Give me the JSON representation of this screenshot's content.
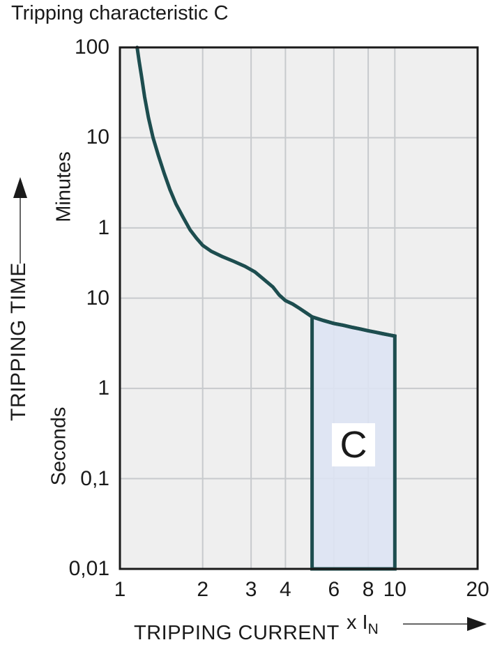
{
  "chart_data": {
    "type": "line",
    "title": "Tripping characteristic C",
    "x_axis": {
      "label": "TRIPPING CURRENT",
      "unit_label": "x I",
      "unit_sub": "N",
      "scale": "log",
      "range": [
        1,
        20
      ],
      "tick_values": [
        1,
        2,
        3,
        4,
        6,
        8,
        10,
        20
      ],
      "tick_labels": [
        "1",
        "2",
        "3",
        "4",
        "6",
        "8",
        "10",
        "20"
      ]
    },
    "y_axis": {
      "label": "TRIPPING TIME",
      "scale": "log",
      "range_seconds": [
        0.01,
        6000
      ],
      "upper_unit": "Minutes",
      "lower_unit": "Seconds",
      "ticks": [
        {
          "label": "100",
          "seconds": 6000
        },
        {
          "label": "10",
          "seconds": 600
        },
        {
          "label": "1",
          "seconds": 60
        },
        {
          "label": "10",
          "seconds": 10
        },
        {
          "label": "1",
          "seconds": 1
        },
        {
          "label": "0,1",
          "seconds": 0.1
        },
        {
          "label": "0,01",
          "seconds": 0.01
        }
      ]
    },
    "grid": {
      "x_lines": [
        2,
        3,
        4,
        6,
        8,
        10
      ],
      "y_lines_seconds": [
        600,
        60,
        10,
        1,
        0.1
      ]
    },
    "series": [
      {
        "name": "tripping-curve",
        "points": [
          [
            1.155,
            6000
          ],
          [
            1.175,
            4200
          ],
          [
            1.2,
            2800
          ],
          [
            1.23,
            1700
          ],
          [
            1.27,
            1000
          ],
          [
            1.32,
            600
          ],
          [
            1.38,
            380
          ],
          [
            1.45,
            240
          ],
          [
            1.52,
            160
          ],
          [
            1.6,
            110
          ],
          [
            1.7,
            78
          ],
          [
            1.8,
            57
          ],
          [
            1.9,
            46
          ],
          [
            2.0,
            38.5
          ],
          [
            2.15,
            33
          ],
          [
            2.35,
            29
          ],
          [
            2.6,
            25.5
          ],
          [
            2.85,
            22.5
          ],
          [
            3.1,
            19.5
          ],
          [
            3.35,
            16
          ],
          [
            3.6,
            13.3
          ],
          [
            3.8,
            10.8
          ],
          [
            4.0,
            9.4
          ],
          [
            4.25,
            8.6
          ],
          [
            4.5,
            7.7
          ],
          [
            4.75,
            6.9
          ],
          [
            5.0,
            6.2
          ],
          [
            5.5,
            5.65
          ],
          [
            6.0,
            5.25
          ],
          [
            6.5,
            5.0
          ],
          [
            7.0,
            4.75
          ],
          [
            7.5,
            4.55
          ],
          [
            8.0,
            4.35
          ],
          [
            8.5,
            4.2
          ],
          [
            9.0,
            4.05
          ],
          [
            9.5,
            3.92
          ],
          [
            10.0,
            3.8
          ]
        ]
      }
    ],
    "region": {
      "label": "C",
      "x_start": 5,
      "x_end": 10,
      "t_bottom": 0.01
    },
    "colors": {
      "curve": "#1d4d4f",
      "region_fill": "#dde3f3",
      "region_border": "#1d4d4f",
      "plot_bg": "#efefef",
      "grid": "#c7cacd",
      "axis": "#1a1a1a",
      "text": "#1a1a1a",
      "arrow_shaft": "#666666",
      "arrow_head": "#1a1a1a"
    }
  }
}
